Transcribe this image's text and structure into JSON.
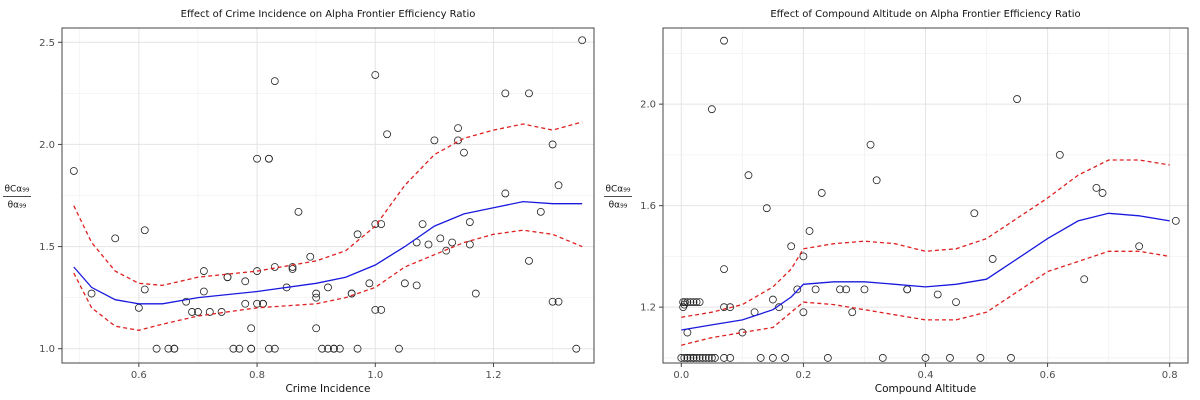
{
  "chart_data": [
    {
      "type": "scatter",
      "title": "Effect of Crime Incidence on Alpha Frontier Efficiency Ratio",
      "xlabel": "Crime Incidence",
      "ylabel_top": "θCα₉₉",
      "ylabel_bottom": "θα₉₉",
      "xlim": [
        0.47,
        1.37
      ],
      "ylim": [
        0.93,
        2.57
      ],
      "xticks": [
        0.6,
        0.8,
        1.0,
        1.2
      ],
      "xtick_labels": [
        "0.6",
        "0.8",
        "1.0",
        "1.2"
      ],
      "yticks": [
        1.0,
        1.5,
        2.0,
        2.5
      ],
      "ytick_labels": [
        "1.0",
        "1.5",
        "2.0",
        "2.5"
      ],
      "grid": true,
      "colors": {
        "points": "#222222",
        "fit": "#1a1adf",
        "ci": "#e02020"
      },
      "points": [
        [
          0.49,
          1.87
        ],
        [
          0.52,
          1.27
        ],
        [
          0.56,
          1.54
        ],
        [
          0.6,
          1.2
        ],
        [
          0.61,
          1.58
        ],
        [
          0.61,
          1.29
        ],
        [
          0.63,
          1.0
        ],
        [
          0.65,
          1.0
        ],
        [
          0.66,
          1.0
        ],
        [
          0.66,
          1.0
        ],
        [
          0.68,
          1.23
        ],
        [
          0.69,
          1.18
        ],
        [
          0.7,
          1.18
        ],
        [
          0.71,
          1.38
        ],
        [
          0.71,
          1.28
        ],
        [
          0.72,
          1.18
        ],
        [
          0.74,
          1.18
        ],
        [
          0.75,
          1.35
        ],
        [
          0.75,
          1.35
        ],
        [
          0.76,
          1.0
        ],
        [
          0.77,
          1.0
        ],
        [
          0.78,
          1.33
        ],
        [
          0.78,
          1.22
        ],
        [
          0.79,
          1.1
        ],
        [
          0.79,
          1.0
        ],
        [
          0.79,
          1.0
        ],
        [
          0.8,
          1.38
        ],
        [
          0.8,
          1.22
        ],
        [
          0.8,
          1.93
        ],
        [
          0.81,
          1.22
        ],
        [
          0.81,
          1.22
        ],
        [
          0.82,
          1.93
        ],
        [
          0.82,
          1.93
        ],
        [
          0.82,
          1.0
        ],
        [
          0.83,
          1.0
        ],
        [
          0.83,
          1.4
        ],
        [
          0.83,
          2.31
        ],
        [
          0.85,
          1.3
        ],
        [
          0.86,
          1.39
        ],
        [
          0.86,
          1.4
        ],
        [
          0.87,
          1.67
        ],
        [
          0.89,
          1.45
        ],
        [
          0.9,
          1.27
        ],
        [
          0.9,
          1.25
        ],
        [
          0.9,
          1.1
        ],
        [
          0.91,
          1.0
        ],
        [
          0.92,
          1.0
        ],
        [
          0.92,
          1.3
        ],
        [
          0.93,
          1.0
        ],
        [
          0.93,
          1.0
        ],
        [
          0.94,
          1.0
        ],
        [
          0.96,
          1.27
        ],
        [
          0.96,
          1.27
        ],
        [
          0.97,
          1.56
        ],
        [
          0.97,
          1.0
        ],
        [
          0.99,
          1.32
        ],
        [
          1.0,
          1.19
        ],
        [
          1.0,
          2.34
        ],
        [
          1.0,
          1.61
        ],
        [
          1.01,
          1.19
        ],
        [
          1.01,
          1.61
        ],
        [
          1.02,
          2.05
        ],
        [
          1.04,
          1.0
        ],
        [
          1.05,
          1.32
        ],
        [
          1.07,
          1.52
        ],
        [
          1.07,
          1.31
        ],
        [
          1.08,
          1.61
        ],
        [
          1.09,
          1.51
        ],
        [
          1.1,
          2.02
        ],
        [
          1.11,
          1.54
        ],
        [
          1.12,
          1.48
        ],
        [
          1.13,
          1.52
        ],
        [
          1.14,
          2.08
        ],
        [
          1.14,
          2.02
        ],
        [
          1.15,
          1.96
        ],
        [
          1.16,
          1.51
        ],
        [
          1.16,
          1.62
        ],
        [
          1.17,
          1.27
        ],
        [
          1.22,
          2.25
        ],
        [
          1.22,
          1.76
        ],
        [
          1.26,
          2.25
        ],
        [
          1.26,
          1.43
        ],
        [
          1.28,
          1.67
        ],
        [
          1.3,
          2.0
        ],
        [
          1.3,
          1.23
        ],
        [
          1.31,
          1.23
        ],
        [
          1.31,
          1.8
        ],
        [
          1.34,
          1.0
        ],
        [
          1.35,
          2.51
        ]
      ],
      "fit": [
        [
          0.49,
          1.4
        ],
        [
          0.52,
          1.3
        ],
        [
          0.56,
          1.24
        ],
        [
          0.6,
          1.22
        ],
        [
          0.64,
          1.22
        ],
        [
          0.7,
          1.25
        ],
        [
          0.8,
          1.28
        ],
        [
          0.9,
          1.32
        ],
        [
          0.95,
          1.35
        ],
        [
          1.0,
          1.41
        ],
        [
          1.05,
          1.5
        ],
        [
          1.1,
          1.6
        ],
        [
          1.15,
          1.66
        ],
        [
          1.2,
          1.69
        ],
        [
          1.25,
          1.72
        ],
        [
          1.3,
          1.71
        ],
        [
          1.35,
          1.71
        ]
      ],
      "ci_upper": [
        [
          0.49,
          1.7
        ],
        [
          0.52,
          1.52
        ],
        [
          0.56,
          1.38
        ],
        [
          0.6,
          1.32
        ],
        [
          0.64,
          1.31
        ],
        [
          0.7,
          1.35
        ],
        [
          0.8,
          1.38
        ],
        [
          0.9,
          1.43
        ],
        [
          0.95,
          1.48
        ],
        [
          1.0,
          1.6
        ],
        [
          1.05,
          1.8
        ],
        [
          1.1,
          1.95
        ],
        [
          1.15,
          2.03
        ],
        [
          1.2,
          2.07
        ],
        [
          1.25,
          2.1
        ],
        [
          1.3,
          2.07
        ],
        [
          1.35,
          2.11
        ]
      ],
      "ci_lower": [
        [
          0.49,
          1.37
        ],
        [
          0.52,
          1.2
        ],
        [
          0.56,
          1.11
        ],
        [
          0.6,
          1.09
        ],
        [
          0.64,
          1.12
        ],
        [
          0.7,
          1.16
        ],
        [
          0.8,
          1.2
        ],
        [
          0.9,
          1.22
        ],
        [
          0.95,
          1.25
        ],
        [
          1.0,
          1.3
        ],
        [
          1.05,
          1.4
        ],
        [
          1.1,
          1.46
        ],
        [
          1.15,
          1.52
        ],
        [
          1.2,
          1.56
        ],
        [
          1.25,
          1.58
        ],
        [
          1.3,
          1.56
        ],
        [
          1.35,
          1.5
        ]
      ]
    },
    {
      "type": "scatter",
      "title": "Effect of Compound Altitude on Alpha Frontier Efficiency Ratio",
      "xlabel": "Compound Altitude",
      "ylabel_top": "θCα₉₉",
      "ylabel_bottom": "θα₉₉",
      "xlim": [
        -0.03,
        0.83
      ],
      "ylim": [
        0.98,
        2.3
      ],
      "xticks": [
        0.0,
        0.2,
        0.4,
        0.6,
        0.8
      ],
      "xtick_labels": [
        "0.0",
        "0.2",
        "0.4",
        "0.6",
        "0.8"
      ],
      "yticks": [
        1.2,
        1.6,
        2.0
      ],
      "ytick_labels": [
        "1.2",
        "1.6",
        "2.0"
      ],
      "grid": true,
      "colors": {
        "points": "#222222",
        "fit": "#1a1adf",
        "ci": "#e02020"
      },
      "points": [
        [
          0.0,
          1.0
        ],
        [
          0.005,
          1.0
        ],
        [
          0.01,
          1.0
        ],
        [
          0.015,
          1.0
        ],
        [
          0.02,
          1.0
        ],
        [
          0.025,
          1.0
        ],
        [
          0.03,
          1.0
        ],
        [
          0.035,
          1.0
        ],
        [
          0.003,
          1.22
        ],
        [
          0.006,
          1.22
        ],
        [
          0.01,
          1.22
        ],
        [
          0.015,
          1.22
        ],
        [
          0.02,
          1.22
        ],
        [
          0.025,
          1.22
        ],
        [
          0.03,
          1.22
        ],
        [
          0.003,
          1.2
        ],
        [
          0.01,
          1.1
        ],
        [
          0.005,
          1.21
        ],
        [
          0.01,
          1.0
        ],
        [
          0.02,
          1.0
        ],
        [
          0.04,
          1.0
        ],
        [
          0.045,
          1.0
        ],
        [
          0.05,
          1.0
        ],
        [
          0.055,
          1.0
        ],
        [
          0.07,
          1.0
        ],
        [
          0.08,
          1.0
        ],
        [
          0.05,
          1.98
        ],
        [
          0.07,
          1.35
        ],
        [
          0.07,
          2.25
        ],
        [
          0.07,
          1.2
        ],
        [
          0.08,
          1.2
        ],
        [
          0.1,
          1.1
        ],
        [
          0.11,
          1.72
        ],
        [
          0.12,
          1.18
        ],
        [
          0.13,
          1.0
        ],
        [
          0.14,
          1.59
        ],
        [
          0.15,
          1.0
        ],
        [
          0.15,
          1.23
        ],
        [
          0.16,
          1.2
        ],
        [
          0.17,
          1.0
        ],
        [
          0.18,
          1.44
        ],
        [
          0.19,
          1.27
        ],
        [
          0.2,
          1.4
        ],
        [
          0.2,
          1.18
        ],
        [
          0.21,
          1.5
        ],
        [
          0.22,
          1.27
        ],
        [
          0.23,
          1.65
        ],
        [
          0.24,
          1.0
        ],
        [
          0.26,
          1.27
        ],
        [
          0.27,
          1.27
        ],
        [
          0.28,
          1.18
        ],
        [
          0.3,
          1.27
        ],
        [
          0.31,
          1.84
        ],
        [
          0.32,
          1.7
        ],
        [
          0.33,
          1.0
        ],
        [
          0.37,
          1.27
        ],
        [
          0.37,
          1.27
        ],
        [
          0.4,
          1.0
        ],
        [
          0.42,
          1.25
        ],
        [
          0.44,
          1.0
        ],
        [
          0.45,
          1.22
        ],
        [
          0.48,
          1.57
        ],
        [
          0.49,
          1.0
        ],
        [
          0.51,
          1.39
        ],
        [
          0.54,
          1.0
        ],
        [
          0.55,
          2.02
        ],
        [
          0.62,
          1.8
        ],
        [
          0.66,
          1.31
        ],
        [
          0.68,
          1.67
        ],
        [
          0.69,
          1.65
        ],
        [
          0.75,
          1.44
        ],
        [
          0.81,
          1.54
        ]
      ],
      "fit": [
        [
          0.0,
          1.11
        ],
        [
          0.05,
          1.13
        ],
        [
          0.1,
          1.15
        ],
        [
          0.15,
          1.19
        ],
        [
          0.18,
          1.24
        ],
        [
          0.2,
          1.29
        ],
        [
          0.25,
          1.3
        ],
        [
          0.3,
          1.3
        ],
        [
          0.35,
          1.29
        ],
        [
          0.4,
          1.28
        ],
        [
          0.45,
          1.29
        ],
        [
          0.5,
          1.31
        ],
        [
          0.55,
          1.39
        ],
        [
          0.6,
          1.47
        ],
        [
          0.65,
          1.54
        ],
        [
          0.7,
          1.57
        ],
        [
          0.75,
          1.56
        ],
        [
          0.8,
          1.54
        ]
      ],
      "ci_upper": [
        [
          0.0,
          1.16
        ],
        [
          0.05,
          1.18
        ],
        [
          0.1,
          1.21
        ],
        [
          0.15,
          1.28
        ],
        [
          0.18,
          1.35
        ],
        [
          0.2,
          1.43
        ],
        [
          0.25,
          1.45
        ],
        [
          0.3,
          1.46
        ],
        [
          0.35,
          1.45
        ],
        [
          0.4,
          1.42
        ],
        [
          0.45,
          1.43
        ],
        [
          0.5,
          1.47
        ],
        [
          0.55,
          1.55
        ],
        [
          0.6,
          1.63
        ],
        [
          0.65,
          1.72
        ],
        [
          0.7,
          1.78
        ],
        [
          0.75,
          1.78
        ],
        [
          0.8,
          1.76
        ]
      ],
      "ci_lower": [
        [
          0.0,
          1.05
        ],
        [
          0.05,
          1.08
        ],
        [
          0.1,
          1.1
        ],
        [
          0.15,
          1.12
        ],
        [
          0.18,
          1.18
        ],
        [
          0.2,
          1.22
        ],
        [
          0.25,
          1.21
        ],
        [
          0.3,
          1.19
        ],
        [
          0.35,
          1.17
        ],
        [
          0.4,
          1.15
        ],
        [
          0.45,
          1.15
        ],
        [
          0.5,
          1.18
        ],
        [
          0.55,
          1.26
        ],
        [
          0.6,
          1.34
        ],
        [
          0.65,
          1.38
        ],
        [
          0.7,
          1.42
        ],
        [
          0.75,
          1.42
        ],
        [
          0.8,
          1.4
        ]
      ]
    }
  ]
}
